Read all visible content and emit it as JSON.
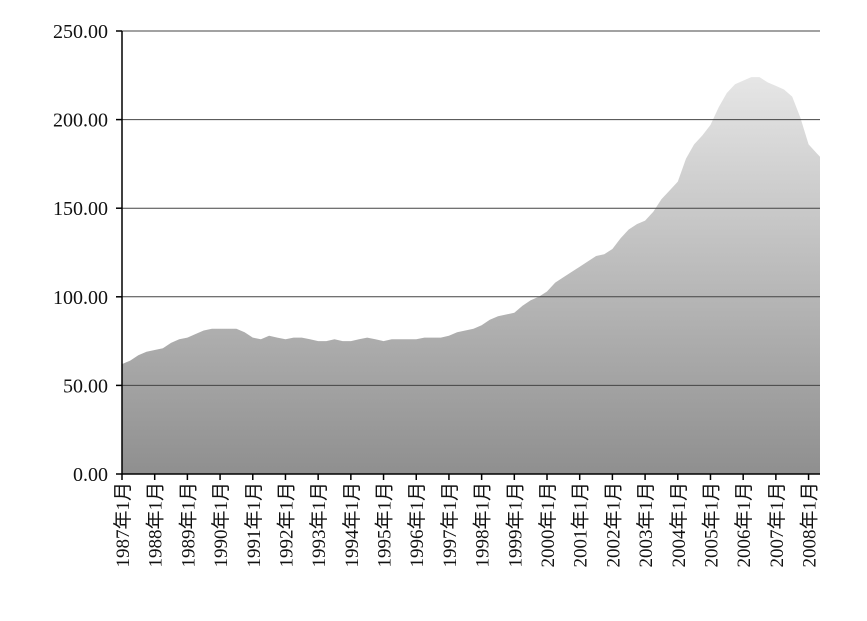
{
  "chart_data": {
    "type": "area",
    "title": "",
    "xlabel": "",
    "ylabel": "",
    "ylim": [
      0,
      250
    ],
    "yticks": [
      "0.00",
      "50.00",
      "100.00",
      "150.00",
      "200.00",
      "250.00"
    ],
    "grid": true,
    "legend": "none",
    "x_tick_labels": [
      "1987年1月",
      "1988年1月",
      "1989年1月",
      "1990年1月",
      "1991年1月",
      "1992年1月",
      "1993年1月",
      "1994年1月",
      "1995年1月",
      "1996年1月",
      "1997年1月",
      "1998年1月",
      "1999年1月",
      "2000年1月",
      "2001年1月",
      "2002年1月",
      "2003年1月",
      "2004年1月",
      "2005年1月",
      "2006年1月",
      "2007年1月",
      "2008年1月"
    ],
    "x_start_year": 1987,
    "x_end_year": 2008.35,
    "series": [
      {
        "fill_top": "#e6e6e6",
        "fill_bottom": "#8f8f8f",
        "points": [
          [
            1987.0,
            62
          ],
          [
            1987.25,
            64
          ],
          [
            1987.5,
            67
          ],
          [
            1987.75,
            69
          ],
          [
            1988.0,
            70
          ],
          [
            1988.25,
            71
          ],
          [
            1988.5,
            74
          ],
          [
            1988.75,
            76
          ],
          [
            1989.0,
            77
          ],
          [
            1989.25,
            79
          ],
          [
            1989.5,
            81
          ],
          [
            1989.75,
            82
          ],
          [
            1990.0,
            82
          ],
          [
            1990.25,
            82
          ],
          [
            1990.5,
            82
          ],
          [
            1990.75,
            80
          ],
          [
            1991.0,
            77
          ],
          [
            1991.25,
            76
          ],
          [
            1991.5,
            78
          ],
          [
            1991.75,
            77
          ],
          [
            1992.0,
            76
          ],
          [
            1992.25,
            77
          ],
          [
            1992.5,
            77
          ],
          [
            1992.75,
            76
          ],
          [
            1993.0,
            75
          ],
          [
            1993.25,
            75
          ],
          [
            1993.5,
            76
          ],
          [
            1993.75,
            75
          ],
          [
            1994.0,
            75
          ],
          [
            1994.25,
            76
          ],
          [
            1994.5,
            77
          ],
          [
            1994.75,
            76
          ],
          [
            1995.0,
            75
          ],
          [
            1995.25,
            76
          ],
          [
            1995.5,
            76
          ],
          [
            1995.75,
            76
          ],
          [
            1996.0,
            76
          ],
          [
            1996.25,
            77
          ],
          [
            1996.5,
            77
          ],
          [
            1996.75,
            77
          ],
          [
            1997.0,
            78
          ],
          [
            1997.25,
            80
          ],
          [
            1997.5,
            81
          ],
          [
            1997.75,
            82
          ],
          [
            1998.0,
            84
          ],
          [
            1998.25,
            87
          ],
          [
            1998.5,
            89
          ],
          [
            1998.75,
            90
          ],
          [
            1999.0,
            91
          ],
          [
            1999.25,
            95
          ],
          [
            1999.5,
            98
          ],
          [
            1999.75,
            100
          ],
          [
            2000.0,
            103
          ],
          [
            2000.25,
            108
          ],
          [
            2000.5,
            111
          ],
          [
            2000.75,
            114
          ],
          [
            2001.0,
            117
          ],
          [
            2001.25,
            120
          ],
          [
            2001.5,
            123
          ],
          [
            2001.75,
            124
          ],
          [
            2002.0,
            127
          ],
          [
            2002.25,
            133
          ],
          [
            2002.5,
            138
          ],
          [
            2002.75,
            141
          ],
          [
            2003.0,
            143
          ],
          [
            2003.25,
            148
          ],
          [
            2003.5,
            155
          ],
          [
            2003.75,
            160
          ],
          [
            2004.0,
            165
          ],
          [
            2004.25,
            178
          ],
          [
            2004.5,
            186
          ],
          [
            2004.75,
            191
          ],
          [
            2005.0,
            197
          ],
          [
            2005.25,
            207
          ],
          [
            2005.5,
            215
          ],
          [
            2005.75,
            220
          ],
          [
            2006.0,
            222
          ],
          [
            2006.25,
            224
          ],
          [
            2006.5,
            224
          ],
          [
            2006.75,
            221
          ],
          [
            2007.0,
            219
          ],
          [
            2007.25,
            217
          ],
          [
            2007.5,
            213
          ],
          [
            2007.75,
            201
          ],
          [
            2008.0,
            186
          ],
          [
            2008.25,
            181
          ],
          [
            2008.35,
            179
          ]
        ]
      }
    ]
  }
}
